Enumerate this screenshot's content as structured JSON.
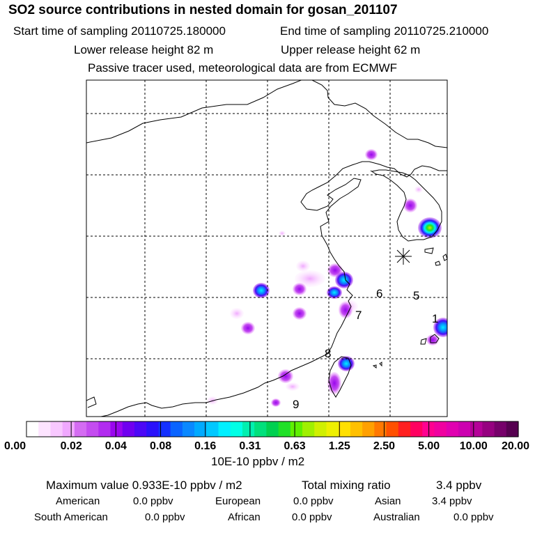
{
  "header": {
    "title": "SO2 source contributions in nested domain for gosan_201107",
    "start_label": "Start time of sampling 20110725.180000",
    "end_label": "End time of sampling 20110725.210000",
    "lower_label": "Lower release height   82 m",
    "upper_label": "Upper release height   62 m",
    "tracer_note": "Passive tracer used, meteorological data are from ECMWF"
  },
  "chart_data": {
    "type": "heatmap",
    "title": "SO2 source contributions in nested domain for gosan_201107",
    "colorbar": {
      "ticks": [
        "0.00",
        "0.02",
        "0.04",
        "0.08",
        "0.16",
        "0.31",
        "0.63",
        "1.25",
        "2.50",
        "5.00",
        "10.00",
        "20.00"
      ],
      "unit": "10E-10 ppbv / m2",
      "colors": [
        "#ffffff",
        "#fde4ff",
        "#f8c8ff",
        "#f0a8ff",
        "#d46cf2",
        "#c44cf0",
        "#b22cf0",
        "#9a06ee",
        "#7000f0",
        "#4c08f6",
        "#2a12fa",
        "#1430ff",
        "#0a64ff",
        "#0a88ff",
        "#00aaff",
        "#00c8ff",
        "#00f0ff",
        "#00ffe6",
        "#00f0b0",
        "#00e07c",
        "#00d050",
        "#20e028",
        "#60f000",
        "#a0f000",
        "#d0f000",
        "#eef000",
        "#ffe000",
        "#ffc000",
        "#ffa000",
        "#ff7800",
        "#ff5000",
        "#ff2020",
        "#ff0060",
        "#ff0090",
        "#f000a0",
        "#e000b0",
        "#cc00b0",
        "#b40098",
        "#960080",
        "#76006a",
        "#560050"
      ]
    },
    "source_labels": [
      "1",
      "5",
      "6",
      "7",
      "8",
      "9"
    ],
    "receptor": "gosan"
  },
  "footer": {
    "max_line": "Maximum value  0.933E-10 ppbv / m2",
    "total_label": "Total mixing ratio",
    "total_value": "3.4 ppbv",
    "regions": [
      {
        "name": "American",
        "value": "0.0 ppbv"
      },
      {
        "name": "European",
        "value": "0.0 ppbv"
      },
      {
        "name": "Asian",
        "value": "3.4 ppbv"
      },
      {
        "name": "South American",
        "value": "0.0 ppbv"
      },
      {
        "name": "African",
        "value": "0.0 ppbv"
      },
      {
        "name": "Australian",
        "value": "0.0 ppbv"
      }
    ]
  }
}
